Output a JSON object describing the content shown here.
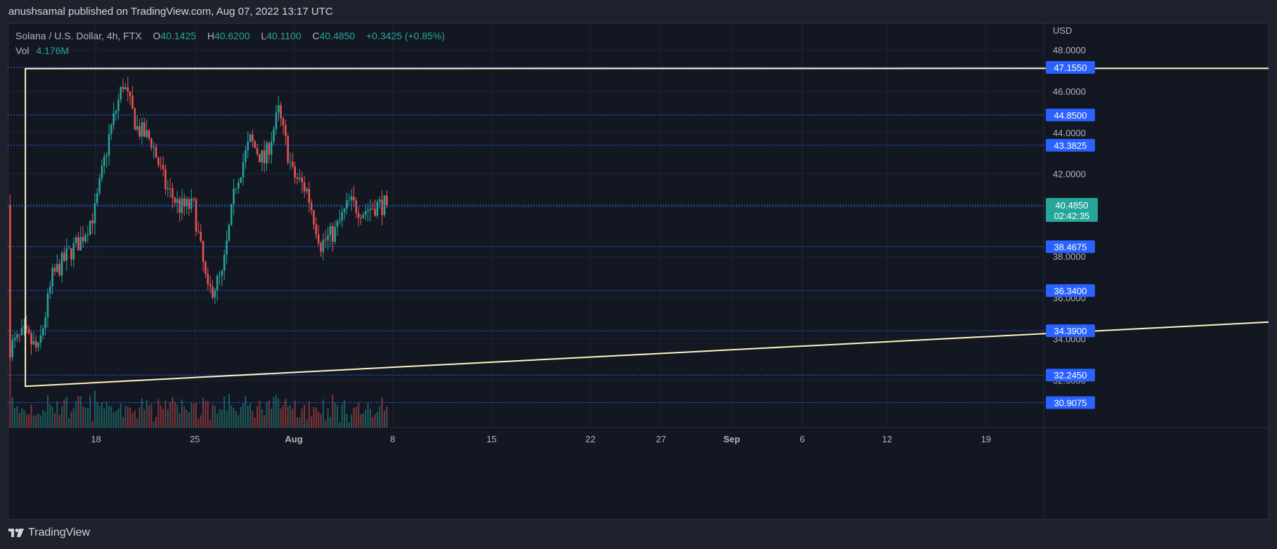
{
  "header": {
    "publisher_text": "anushsamal published on TradingView.com, Aug 07, 2022 13:17 UTC"
  },
  "legend": {
    "symbol": "Solana / U.S. Dollar, 4h, FTX",
    "o_label": "O",
    "o_value": "40.1425",
    "h_label": "H",
    "h_value": "40.6200",
    "l_label": "L",
    "l_value": "40.1100",
    "c_label": "C",
    "c_value": "40.4850",
    "change": "+0.3425 (+0.85%)",
    "vol_label": "Vol",
    "vol_value": "4.176M"
  },
  "footer": {
    "brand": "TradingView",
    "logo_icon": "tradingview-logo-icon"
  },
  "colors": {
    "up": "#26a69a",
    "down": "#ef5350",
    "background": "#131722",
    "triangle": "#fff5c2",
    "hline": "#2962ff",
    "price_badge": "#26a69a"
  },
  "chart_data": {
    "type": "candlestick",
    "symbol": "SOLUSD",
    "timeframe": "4h",
    "y_axis_unit": "USD",
    "ylim": [
      29.7,
      49.3
    ],
    "y_ticks": [
      "48.0000",
      "46.0000",
      "44.0000",
      "42.0000",
      "38.0000",
      "36.0000",
      "34.0000",
      "32.0000"
    ],
    "x_ticks": [
      "18",
      "25",
      "Aug",
      "8",
      "15",
      "22",
      "27",
      "Sep",
      "6",
      "12",
      "19"
    ],
    "horizontal_levels": [
      "47.1550",
      "44.8500",
      "43.3825",
      "40.4275",
      "38.4675",
      "36.3400",
      "34.3900",
      "32.2450",
      "30.9075"
    ],
    "current_price": "40.4850",
    "countdown": "02:42:35",
    "ohlc_path": [
      [
        "2022-07-12",
        33.6
      ],
      [
        "2022-07-13",
        34.2
      ],
      [
        "2022-07-14",
        33.4
      ],
      [
        "2022-07-15",
        37.0
      ],
      [
        "2022-07-16",
        38.0
      ],
      [
        "2022-07-17",
        38.8
      ],
      [
        "2022-07-18",
        40.2
      ],
      [
        "2022-07-19",
        43.8
      ],
      [
        "2022-07-20",
        46.4
      ],
      [
        "2022-07-21",
        44.2
      ],
      [
        "2022-07-22",
        43.6
      ],
      [
        "2022-07-23",
        41.4
      ],
      [
        "2022-07-24",
        40.4
      ],
      [
        "2022-07-25",
        40.4
      ],
      [
        "2022-07-26",
        36.2
      ],
      [
        "2022-07-27",
        37.0
      ],
      [
        "2022-07-28",
        41.6
      ],
      [
        "2022-07-29",
        43.6
      ],
      [
        "2022-07-30",
        42.6
      ],
      [
        "2022-07-31",
        45.0
      ],
      [
        "2022-08-01",
        42.0
      ],
      [
        "2022-08-02",
        41.2
      ],
      [
        "2022-08-03",
        38.6
      ],
      [
        "2022-08-04",
        39.2
      ],
      [
        "2022-08-05",
        40.6
      ],
      [
        "2022-08-06",
        40.2
      ],
      [
        "2022-08-07",
        40.485
      ]
    ],
    "drawings": {
      "triangle": [
        [
          "2022-07-13",
          47.1
        ],
        [
          "2023-09-23",
          47.155
        ],
        [
          "2022-07-13",
          31.7
        ]
      ]
    }
  }
}
